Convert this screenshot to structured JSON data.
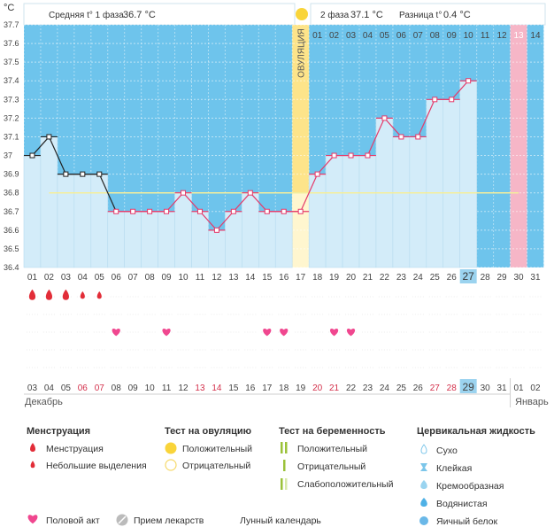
{
  "header": {
    "unit": "°C",
    "phase1_label": "Средняя t° 1 фаза",
    "phase1_value": "36.7 °C",
    "phase2_label": "2 фаза",
    "phase2_value": "37.1 °C",
    "diff_label": "Разница t°",
    "diff_value": "0.4 °C"
  },
  "chart_data": {
    "type": "line",
    "x": [
      "01",
      "02",
      "03",
      "04",
      "05",
      "06",
      "07",
      "08",
      "09",
      "10",
      "11",
      "12",
      "13",
      "14",
      "15",
      "16",
      "17",
      "18",
      "19",
      "20",
      "21",
      "22",
      "23",
      "24",
      "25",
      "26",
      "27",
      "28",
      "29",
      "30",
      "31"
    ],
    "values": [
      37.0,
      37.1,
      36.9,
      36.9,
      36.9,
      36.7,
      36.7,
      36.7,
      36.7,
      36.8,
      36.7,
      36.6,
      36.7,
      36.8,
      36.7,
      36.7,
      36.7,
      36.9,
      37.0,
      37.0,
      37.0,
      37.2,
      37.1,
      37.1,
      37.3,
      37.3,
      37.4,
      null,
      null,
      null,
      null
    ],
    "ylim": [
      36.4,
      37.7
    ],
    "yticks": [
      "36.4",
      "36.5",
      "36.6",
      "36.7",
      "36.8",
      "36.9",
      "37",
      "37.1",
      "37.2",
      "37.3",
      "37.4",
      "37.5",
      "37.6",
      "37.7"
    ],
    "cover_line": 36.8,
    "ovulation_day": 17,
    "ovulation_label": "ОВУЛЯЦИЯ",
    "phase2_day_labels": [
      "01",
      "02",
      "03",
      "04",
      "05",
      "06",
      "07",
      "08",
      "09",
      "10",
      "11",
      "12",
      "13",
      "14"
    ],
    "highlight_day_label": "13",
    "current_day": "27",
    "grid": true
  },
  "markers": {
    "menstruation_heavy": [
      1,
      2,
      3
    ],
    "menstruation_light": [
      4,
      5
    ],
    "intercourse": [
      6,
      9,
      15,
      16,
      19,
      20
    ]
  },
  "calendar": {
    "dates": [
      "03",
      "04",
      "05",
      "06",
      "07",
      "08",
      "09",
      "10",
      "11",
      "12",
      "13",
      "14",
      "15",
      "16",
      "17",
      "18",
      "19",
      "20",
      "21",
      "22",
      "23",
      "24",
      "25",
      "26",
      "27",
      "28",
      "29",
      "30",
      "31",
      "01",
      "02"
    ],
    "weekend_days": [
      4,
      5,
      11,
      12,
      18,
      19,
      25,
      26
    ],
    "today_index": 27,
    "month_start": "Декабрь",
    "month_end": "Январь"
  },
  "legend": {
    "menstruation": {
      "title": "Менструация",
      "items": [
        "Менструация",
        "Небольшие выделения"
      ]
    },
    "ovulation_test": {
      "title": "Тест на овуляцию",
      "items": [
        "Положительный",
        "Отрицательный"
      ]
    },
    "pregnancy_test": {
      "title": "Тест на беременность",
      "items": [
        "Положительный",
        "Отрицательный",
        "Слабоположительный"
      ]
    },
    "cervical": {
      "title": "Цервикальная жидкость",
      "items": [
        "Сухо",
        "Клейкая",
        "Кремообразная",
        "Водянистая",
        "Яичный белок"
      ]
    },
    "bottom": [
      "Половой акт",
      "Прием лекарств",
      "Лунный календарь"
    ]
  },
  "colors": {
    "sky": "#6ec4ec",
    "plot_fill": "#d3ecf9",
    "line": "#e53a6a",
    "ovulation": "#fde48a",
    "pink_day": "#f6b6c7",
    "today": "#9bd3ef"
  }
}
